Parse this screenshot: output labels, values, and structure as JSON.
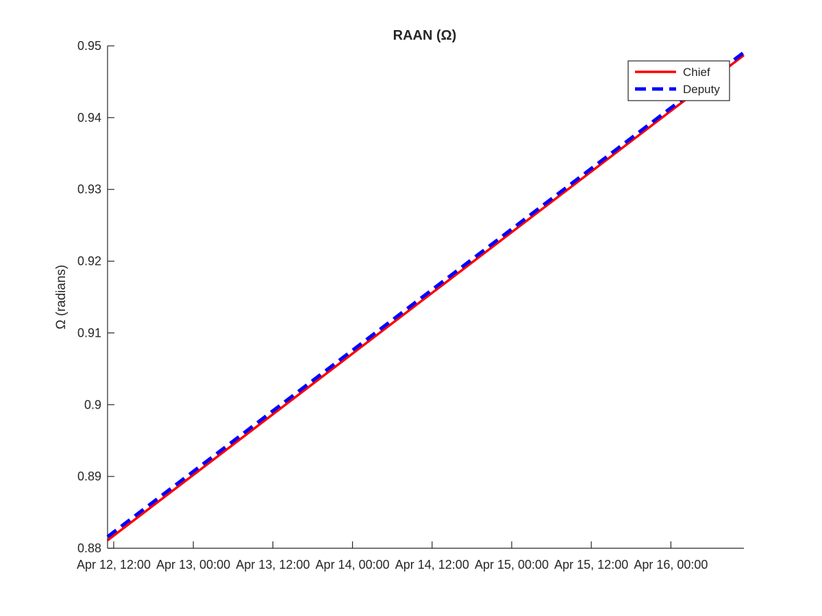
{
  "chart_data": {
    "type": "line",
    "title": "RAAN (Ω)",
    "xlabel": "",
    "ylabel": "Ω (radians)",
    "ylim": [
      0.88,
      0.95
    ],
    "xlim": [
      "Apr 12, 12:00",
      "Apr 16, 00:00"
    ],
    "x_tick_labels": [
      "Apr 12, 12:00",
      "Apr 13, 00:00",
      "Apr 13, 12:00",
      "Apr 14, 00:00",
      "Apr 14, 12:00",
      "Apr 15, 00:00",
      "Apr 15, 12:00",
      "Apr 16, 00:00"
    ],
    "y_tick_labels": [
      "0.88",
      "0.89",
      "0.9",
      "0.91",
      "0.92",
      "0.93",
      "0.94",
      "0.95"
    ],
    "grid": false,
    "legend_position": "top-right",
    "series": [
      {
        "name": "Chief",
        "color": "#ff0000",
        "line_style": "solid",
        "x": [
          "Apr 12, 12:00",
          "Apr 16, 00:00"
        ],
        "y": [
          0.8811,
          0.9487
        ]
      },
      {
        "name": "Deputy",
        "color": "#0000ff",
        "line_style": "dashed",
        "x": [
          "Apr 12, 12:00",
          "Apr 16, 00:00"
        ],
        "y": [
          0.8816,
          0.9491
        ]
      }
    ]
  }
}
